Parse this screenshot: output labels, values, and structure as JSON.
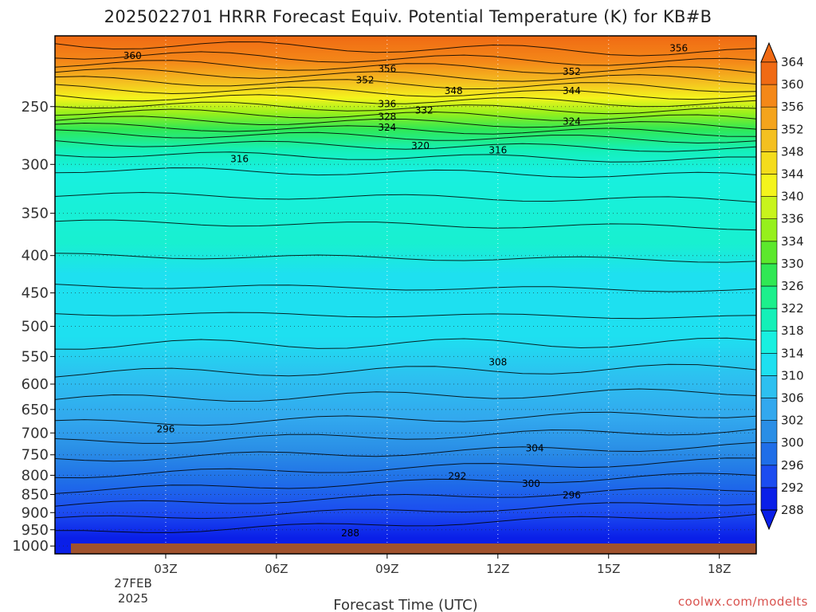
{
  "chart_data": {
    "type": "heatmap",
    "title": "2025022701 HRRR Forecast Equiv. Potential Temperature (K) for KB#B",
    "xlabel": "Forecast Time (UTC)",
    "ylabel": "",
    "x_ticks": [
      "03Z",
      "06Z",
      "09Z",
      "12Z",
      "15Z",
      "18Z"
    ],
    "x_tick_hours": [
      3,
      6,
      9,
      12,
      15,
      18
    ],
    "xlim_hours": [
      0,
      19
    ],
    "date_label": [
      "27FEB",
      "2025"
    ],
    "y_ticks": [
      250,
      300,
      350,
      400,
      450,
      500,
      550,
      600,
      650,
      700,
      750,
      800,
      850,
      900,
      950,
      1000
    ],
    "y_unit": "hPa",
    "ylim_hpa": [
      200,
      1025
    ],
    "y_scale": "log",
    "grid": "dotted",
    "colorbar": {
      "levels": [
        288,
        292,
        296,
        300,
        302,
        306,
        310,
        314,
        318,
        322,
        326,
        330,
        334,
        336,
        340,
        344,
        348,
        352,
        356,
        360,
        364
      ],
      "colors": [
        "#0a1fe8",
        "#1c4cf0",
        "#1f6ee8",
        "#2a8ee6",
        "#32a8ee",
        "#2dc0f0",
        "#1ee0f0",
        "#18f0e0",
        "#14f0b8",
        "#1cf08c",
        "#30e854",
        "#5ce82c",
        "#96f01c",
        "#c8f41c",
        "#f4f41c",
        "#f4dc1c",
        "#f4c020",
        "#f4a41c",
        "#f48818",
        "#f06a14"
      ],
      "position": "right"
    },
    "contour_labels": [
      {
        "hour": 2.1,
        "p": 213,
        "value": "360"
      },
      {
        "hour": 8.4,
        "p": 230,
        "value": "352"
      },
      {
        "hour": 9.0,
        "p": 222,
        "value": "356"
      },
      {
        "hour": 14.0,
        "p": 224,
        "value": "352"
      },
      {
        "hour": 16.9,
        "p": 208,
        "value": "356"
      },
      {
        "hour": 10.8,
        "p": 238,
        "value": "348"
      },
      {
        "hour": 14.0,
        "p": 238,
        "value": "344"
      },
      {
        "hour": 9.0,
        "p": 248,
        "value": "336"
      },
      {
        "hour": 9.0,
        "p": 258,
        "value": "328"
      },
      {
        "hour": 9.0,
        "p": 267,
        "value": "324"
      },
      {
        "hour": 10.0,
        "p": 253,
        "value": "332"
      },
      {
        "hour": 14.0,
        "p": 262,
        "value": "324"
      },
      {
        "hour": 9.9,
        "p": 283,
        "value": "320"
      },
      {
        "hour": 5.0,
        "p": 295,
        "value": "316"
      },
      {
        "hour": 12.0,
        "p": 287,
        "value": "316"
      },
      {
        "hour": 12.0,
        "p": 560,
        "value": "308"
      },
      {
        "hour": 3.0,
        "p": 692,
        "value": "296"
      },
      {
        "hour": 13.0,
        "p": 735,
        "value": "304"
      },
      {
        "hour": 10.9,
        "p": 802,
        "value": "292"
      },
      {
        "hour": 12.9,
        "p": 822,
        "value": "300"
      },
      {
        "hour": 14.0,
        "p": 852,
        "value": "296"
      },
      {
        "hour": 8.0,
        "p": 960,
        "value": "288"
      }
    ],
    "watermark": "coolwx.com/modelts",
    "ground_color": "#a0522d"
  }
}
